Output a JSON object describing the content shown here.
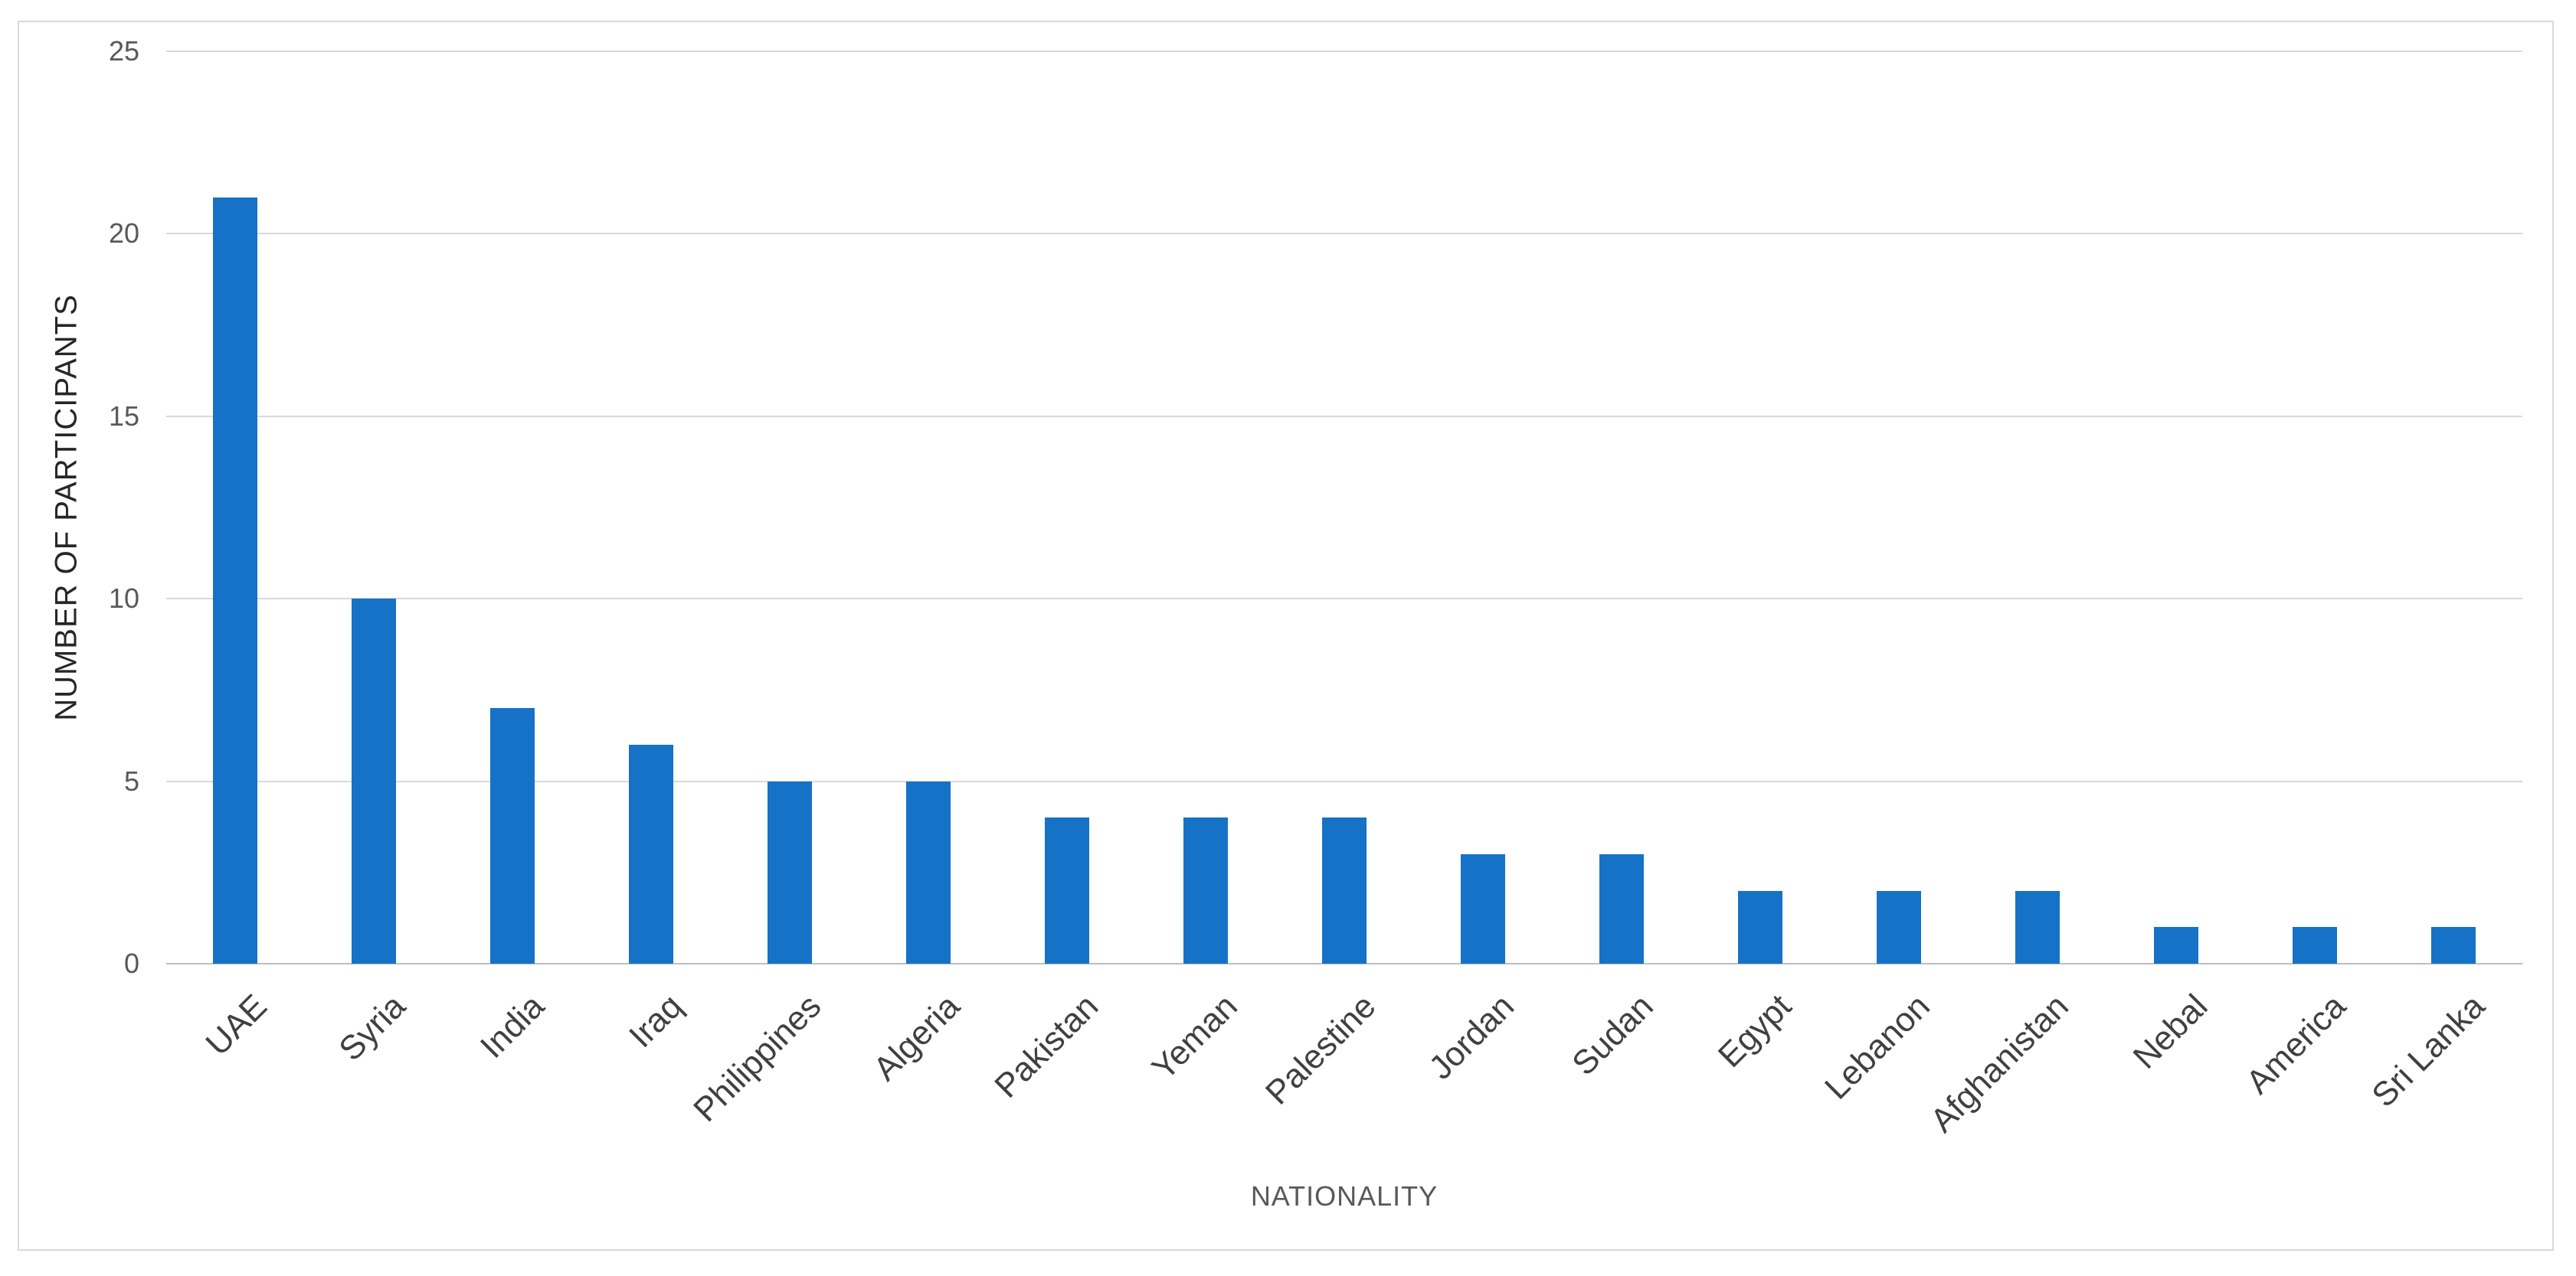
{
  "chart_data": {
    "type": "bar",
    "title": "",
    "categories": [
      "UAE",
      "Syria",
      "India",
      "Iraq",
      "Philippines",
      "Algeria",
      "Pakistan",
      "Yeman",
      "Palestine",
      "Jordan",
      "Sudan",
      "Egypt",
      "Lebanon",
      "Afghanistan",
      "Nebal",
      "America",
      "Sri Lanka"
    ],
    "values": [
      21,
      10,
      7,
      6,
      5,
      5,
      4,
      4,
      4,
      3,
      3,
      2,
      2,
      2,
      1,
      1,
      1
    ],
    "xlabel": "NATIONALITY",
    "ylabel": "NUMBER OF PARTICIPANTS",
    "ylim": [
      0,
      25
    ],
    "yticks": [
      0,
      5,
      10,
      15,
      20,
      25
    ],
    "grid": "horizontal-only",
    "legend": false,
    "bar_color": "#1672c7",
    "gridline_color": "#d9d9d9",
    "axis_line_color": "#bfbfbf",
    "frame_border_color": "#d9d9d9",
    "tick_label_color": "#595959",
    "category_label_color": "#404040",
    "y_title_color": "#262626",
    "background_color": "#ffffff"
  }
}
